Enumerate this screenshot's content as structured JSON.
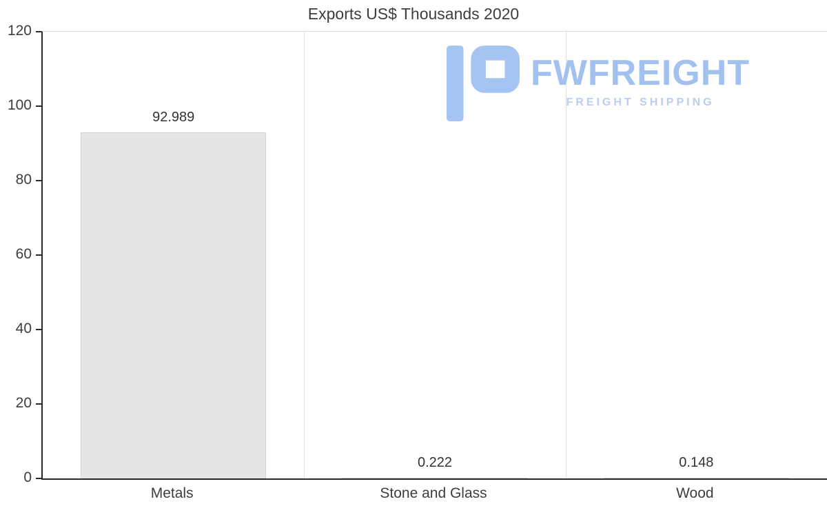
{
  "chart_data": {
    "type": "bar",
    "title": "Exports US$ Thousands 2020",
    "categories": [
      "Metals",
      "Stone and Glass",
      "Wood"
    ],
    "values": [
      92.989,
      0.222,
      0.148
    ],
    "value_labels": [
      "92.989",
      "0.222",
      "0.148"
    ],
    "xlabel": "",
    "ylabel": "",
    "ylim": [
      0,
      120
    ],
    "yticks": [
      0,
      20,
      40,
      60,
      80,
      100,
      120
    ],
    "grid": "vertical category separators only",
    "legend": "none",
    "bar_color": "#e6e6e6",
    "bar_border_color": "#d2d2d2",
    "axis_color": "#2a2a2a",
    "grid_color": "#e0e0e0",
    "text_color": "#3d3d3d"
  },
  "watermark": {
    "brand": "FWFREIGHT",
    "tagline": "FREIGHT SHIPPING",
    "color": "#a3c1ee"
  }
}
